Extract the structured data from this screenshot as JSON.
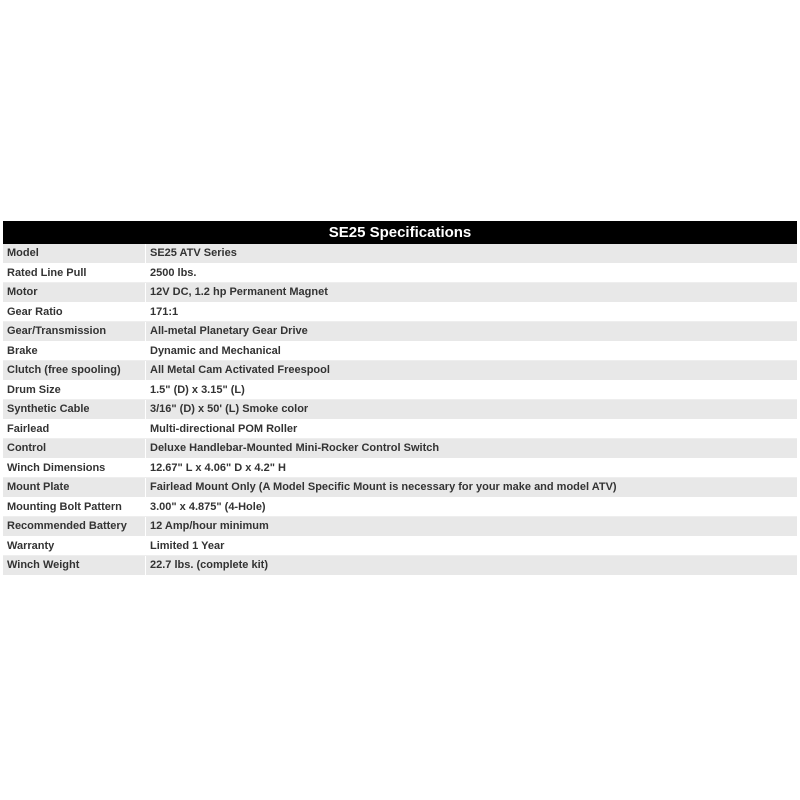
{
  "table": {
    "title": "SE25 Specifications",
    "rows": [
      [
        "Model",
        "SE25 ATV Series"
      ],
      [
        "Rated Line Pull",
        "2500 lbs."
      ],
      [
        "Motor",
        "12V DC, 1.2 hp Permanent Magnet"
      ],
      [
        "Gear Ratio",
        "171:1"
      ],
      [
        "Gear/Transmission",
        "All-metal Planetary Gear Drive"
      ],
      [
        "Brake",
        "Dynamic and Mechanical"
      ],
      [
        "Clutch (free spooling)",
        "All Metal Cam Activated Freespool"
      ],
      [
        "Drum Size",
        "1.5\" (D) x 3.15\" (L)"
      ],
      [
        "Synthetic Cable",
        "3/16\" (D) x 50' (L) Smoke color"
      ],
      [
        "Fairlead",
        "Multi-directional POM Roller"
      ],
      [
        "Control",
        "Deluxe Handlebar-Mounted Mini-Rocker Control Switch"
      ],
      [
        "Winch Dimensions",
        "12.67\" L x 4.06\" D x 4.2\" H"
      ],
      [
        "Mount Plate",
        "Fairlead Mount Only (A Model Specific Mount is necessary for your make and model ATV)"
      ],
      [
        "Mounting Bolt Pattern",
        "3.00\" x 4.875\" (4-Hole)"
      ],
      [
        "Recommended Battery",
        "12 Amp/hour minimum"
      ],
      [
        "Warranty",
        "Limited 1 Year"
      ],
      [
        "Winch Weight",
        "22.7 lbs. (complete kit)"
      ]
    ]
  }
}
